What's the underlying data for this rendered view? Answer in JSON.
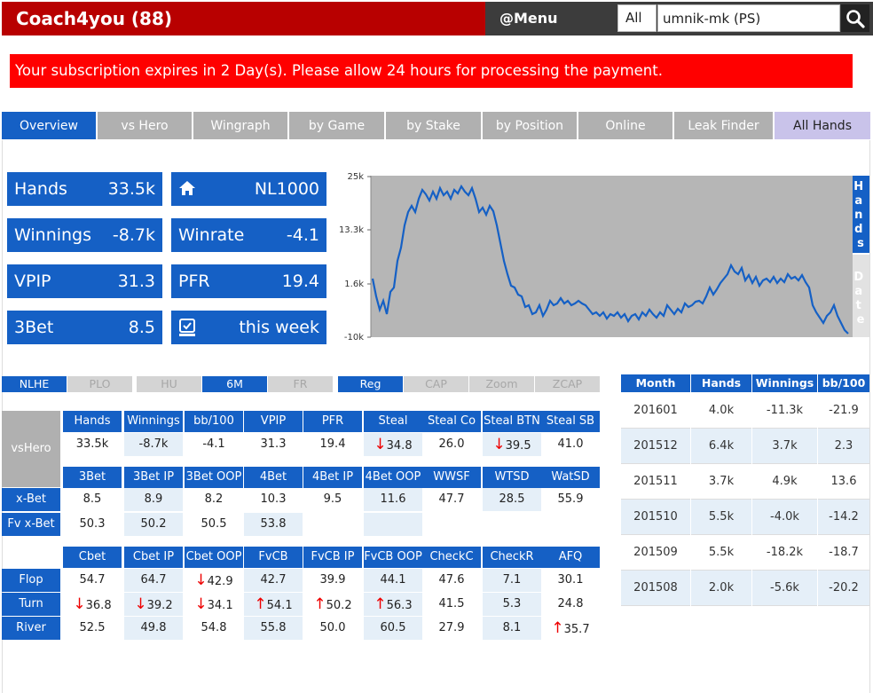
{
  "header": {
    "brand": "Coach4you (88)",
    "menu": "@Menu",
    "filter": "All",
    "search_value": "umnik-mk (PS)"
  },
  "alert": "Your subscription expires in 2 Day(s). Please allow 24 hours for processing the payment.",
  "tabs": [
    "Overview",
    "vs Hero",
    "Wingraph",
    "by Game",
    "by Stake",
    "by Position",
    "Online",
    "Leak Finder",
    "All Hands"
  ],
  "stats": {
    "hands_label": "Hands",
    "hands_value": "33.5k",
    "stake_value": "NL1000",
    "winnings_label": "Winnings",
    "winnings_value": "-8.7k",
    "winrate_label": "Winrate",
    "winrate_value": "-4.1",
    "vpip_label": "VPIP",
    "vpip_value": "31.3",
    "pfr_label": "PFR",
    "pfr_value": "19.4",
    "threebet_label": "3Bet",
    "threebet_value": "8.5",
    "period_value": "this week"
  },
  "graph": {
    "y_ticks": [
      "25k",
      "13.3k",
      "1.6k",
      "-10k"
    ],
    "toggle_hands": "Hands",
    "toggle_date": "Date",
    "colors": {
      "line": "#1560c5",
      "bg": "#b6b6b6"
    }
  },
  "filters": {
    "game": [
      "NLHE",
      "PLO"
    ],
    "table": [
      "HU",
      "6M",
      "FR"
    ],
    "type": [
      "Reg",
      "CAP",
      "Zoom",
      "ZCAP"
    ]
  },
  "grid": {
    "vshero_label": "vsHero",
    "head1": [
      "Hands",
      "Winnings",
      "bb/100",
      "VPIP",
      "PFR",
      "Steal",
      "Steal Co",
      "Steal BTN",
      "Steal SB"
    ],
    "row1": [
      "33.5k",
      "-8.7k",
      "-4.1",
      "31.3",
      "19.4",
      "34.8",
      "26.0",
      "39.5",
      "41.0"
    ],
    "head2": [
      "3Bet",
      "3Bet IP",
      "3Bet OOP",
      "4Bet",
      "4Bet IP",
      "4Bet OOP",
      "WWSF",
      "WTSD",
      "WatSD"
    ],
    "xbet_label": "x-Bet",
    "row_xbet": [
      "8.5",
      "8.9",
      "8.2",
      "10.3",
      "9.5",
      "11.6",
      "47.7",
      "28.5",
      "55.9"
    ],
    "fvxbet_label": "Fv x-Bet",
    "row_fvxbet": [
      "50.3",
      "50.2",
      "50.5",
      "53.8"
    ],
    "head3": [
      "Cbet",
      "Cbet IP",
      "Cbet OOP",
      "FvCB",
      "FvCB IP",
      "FvCB OOP",
      "CheckC",
      "CheckR",
      "AFQ"
    ],
    "flop_label": "Flop",
    "row_flop": [
      "54.7",
      "64.7",
      "42.9",
      "42.7",
      "39.9",
      "44.1",
      "47.6",
      "7.1",
      "30.1"
    ],
    "turn_label": "Turn",
    "row_turn": [
      "36.8",
      "39.2",
      "34.1",
      "54.1",
      "50.2",
      "56.3",
      "41.5",
      "5.3",
      "24.8"
    ],
    "river_label": "River",
    "row_river": [
      "52.5",
      "49.8",
      "54.8",
      "55.8",
      "50.0",
      "60.5",
      "27.9",
      "8.1",
      "35.7"
    ]
  },
  "month_table": {
    "headers": [
      "Month",
      "Hands",
      "Winnings",
      "bb/100"
    ],
    "rows": [
      [
        "201601",
        "4.0k",
        "-11.3k",
        "-21.9"
      ],
      [
        "201512",
        "6.4k",
        "3.7k",
        "2.3"
      ],
      [
        "201511",
        "3.7k",
        "4.9k",
        "13.6"
      ],
      [
        "201510",
        "5.5k",
        "-4.0k",
        "-14.2"
      ],
      [
        "201509",
        "5.5k",
        "-18.2k",
        "-18.7"
      ],
      [
        "201508",
        "2.0k",
        "-5.6k",
        "-20.2"
      ]
    ]
  }
}
